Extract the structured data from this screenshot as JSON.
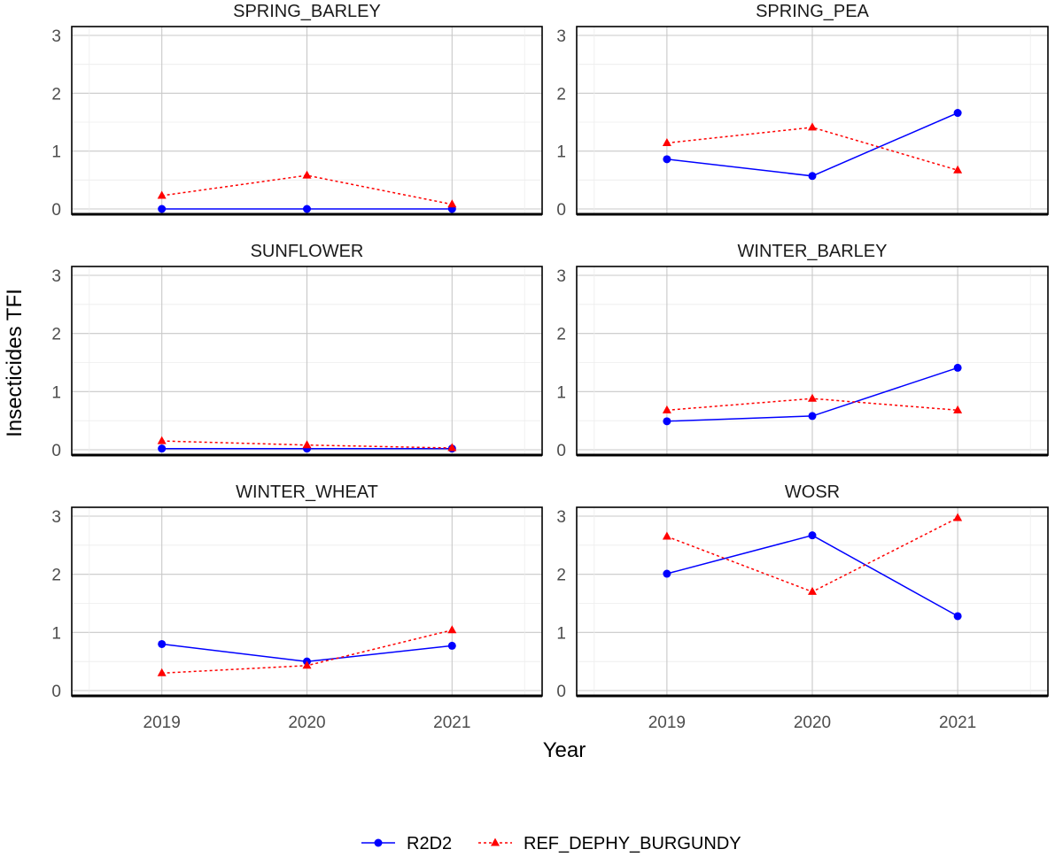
{
  "chart_data": {
    "type": "line",
    "xlabel": "Year",
    "ylabel": "Insecticides TFI",
    "x": [
      "2019",
      "2020",
      "2021"
    ],
    "ylim": [
      0,
      3
    ],
    "yticks": [
      "0",
      "1",
      "2",
      "3"
    ],
    "grid": true,
    "legend_position": "bottom",
    "series_styles": [
      {
        "name": "R2D2",
        "color": "#0000ff",
        "line": "solid",
        "marker": "circle"
      },
      {
        "name": "REF_DEPHY_BURGUNDY",
        "color": "#ff0000",
        "line": "dotted",
        "marker": "triangle"
      }
    ],
    "panels": [
      {
        "title": "SPRING_BARLEY",
        "series": [
          {
            "name": "R2D2",
            "values": [
              0.0,
              0.0,
              0.0
            ]
          },
          {
            "name": "REF_DEPHY_BURGUNDY",
            "values": [
              0.23,
              0.58,
              0.08
            ]
          }
        ]
      },
      {
        "title": "SPRING_PEA",
        "series": [
          {
            "name": "R2D2",
            "values": [
              0.86,
              0.57,
              1.66
            ]
          },
          {
            "name": "REF_DEPHY_BURGUNDY",
            "values": [
              1.14,
              1.41,
              0.67
            ]
          }
        ]
      },
      {
        "title": "SUNFLOWER",
        "series": [
          {
            "name": "R2D2",
            "values": [
              0.02,
              0.02,
              0.02
            ]
          },
          {
            "name": "REF_DEPHY_BURGUNDY",
            "values": [
              0.15,
              0.08,
              0.03
            ]
          }
        ]
      },
      {
        "title": "WINTER_BARLEY",
        "series": [
          {
            "name": "R2D2",
            "values": [
              0.49,
              0.58,
              1.41
            ]
          },
          {
            "name": "REF_DEPHY_BURGUNDY",
            "values": [
              0.68,
              0.88,
              0.68
            ]
          }
        ]
      },
      {
        "title": "WINTER_WHEAT",
        "series": [
          {
            "name": "R2D2",
            "values": [
              0.8,
              0.5,
              0.77
            ]
          },
          {
            "name": "REF_DEPHY_BURGUNDY",
            "values": [
              0.3,
              0.43,
              1.04
            ]
          }
        ]
      },
      {
        "title": "WOSR",
        "series": [
          {
            "name": "R2D2",
            "values": [
              2.01,
              2.67,
              1.28
            ]
          },
          {
            "name": "REF_DEPHY_BURGUNDY",
            "values": [
              2.65,
              1.7,
              2.97
            ]
          }
        ]
      }
    ]
  }
}
